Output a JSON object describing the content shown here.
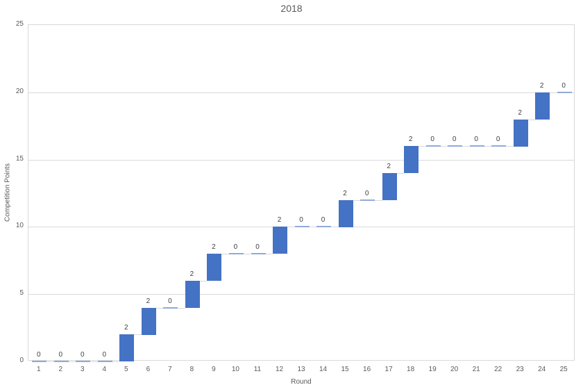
{
  "title": "2018",
  "chart_data": {
    "type": "bar",
    "subtype": "waterfall",
    "title": "2018",
    "xlabel": "Round",
    "ylabel": "Competition Points",
    "categories": [
      "1",
      "2",
      "3",
      "4",
      "5",
      "6",
      "7",
      "8",
      "9",
      "10",
      "11",
      "12",
      "13",
      "14",
      "15",
      "16",
      "17",
      "18",
      "19",
      "20",
      "21",
      "22",
      "23",
      "24",
      "25"
    ],
    "values": [
      0,
      0,
      0,
      0,
      2,
      2,
      0,
      2,
      2,
      0,
      0,
      2,
      0,
      0,
      2,
      0,
      2,
      2,
      0,
      0,
      0,
      0,
      2,
      2,
      0
    ],
    "cumulative": [
      0,
      0,
      0,
      0,
      2,
      4,
      4,
      6,
      8,
      8,
      8,
      10,
      10,
      10,
      12,
      12,
      14,
      16,
      16,
      16,
      16,
      16,
      18,
      20,
      20
    ],
    "data_labels": [
      "0",
      "0",
      "0",
      "0",
      "2",
      "2",
      "0",
      "2",
      "2",
      "0",
      "0",
      "2",
      "0",
      "0",
      "2",
      "0",
      "2",
      "2",
      "0",
      "0",
      "0",
      "0",
      "2",
      "2",
      "0"
    ],
    "ylim": [
      0,
      25
    ],
    "yticks": [
      "0",
      "5",
      "10",
      "15",
      "20",
      "25"
    ],
    "grid": "horizontal",
    "legend_position": "none",
    "colors": {
      "bar": "#4472C4",
      "zero_marker": "#8FAADC",
      "connector": "#D9D9D9",
      "gridline": "#D9D9D9",
      "axis_text": "#595959",
      "data_label": "#404040",
      "title_text": "#595959",
      "background": "#FFFFFF"
    }
  }
}
